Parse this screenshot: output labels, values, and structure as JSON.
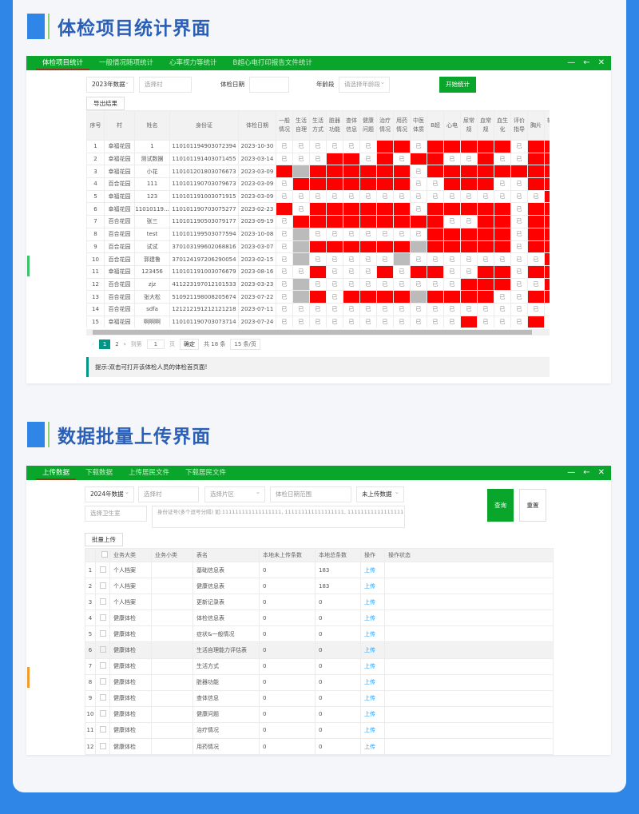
{
  "section1": {
    "title": "体检项目统计界面"
  },
  "section2": {
    "title": "数据批量上传界面"
  },
  "win1": {
    "tabs": [
      "体检项目统计",
      "一般情况随项统计",
      "心率视力等统计",
      "B超心电打印报告文件统计"
    ],
    "controls": {
      "year": "2023年数据",
      "village_placeholder": "选择村",
      "date_label": "体检日期",
      "age_label": "年龄段",
      "age_placeholder": "请选择年龄段",
      "start_button": "开始统计",
      "export_button": "导出结果"
    },
    "columns": [
      "序号",
      "村",
      "姓名",
      "身份证",
      "体检日期",
      "一般情况",
      "生活自理",
      "生活方式",
      "脏器功能",
      "查体信息",
      "健康问题",
      "治疗情况",
      "用药情况",
      "中医体质",
      "B超",
      "心电",
      "尿常规",
      "血常规",
      "血生化",
      "评价指导",
      "胸片",
      "辅检其"
    ],
    "done_text": "已",
    "status_colors": {
      "r": "#ff0000",
      "g": "#bbbbbb"
    },
    "rows": [
      [
        "1",
        "幸福花园",
        "1",
        "110101194903072394",
        "2023-10-30",
        "yyyyyyrryrrrrryrr"
      ],
      [
        "2",
        "幸福花园",
        "测试数据",
        "110101191403071455",
        "2023-03-14",
        "yyyrryryrryyryyrr"
      ],
      [
        "3",
        "幸福花园",
        "小花",
        "110101201803076673",
        "2023-03-09",
        "rgrrrrrryrrrrrrrr"
      ],
      [
        "4",
        "百合花园",
        "111",
        "110101190703079673",
        "2023-03-09",
        "yrrrrrrryyrrryyrr"
      ],
      [
        "5",
        "幸福花园",
        "123",
        "110101191003071915",
        "2023-03-09",
        "yyyyyyyyyyyyyyyyr"
      ],
      [
        "6",
        "幸福花园",
        "11010119...",
        "110101190703075277",
        "2023-02-23",
        "ryrrrrrryrrrrryrr"
      ],
      [
        "7",
        "百合花园",
        "张三",
        "110101190503079177",
        "2023-09-19",
        "yrrrrrrrrryyrryrr"
      ],
      [
        "8",
        "百合花园",
        "test",
        "110101199503077594",
        "2023-10-08",
        "ygyyyyyyyrrrrryrr"
      ],
      [
        "9",
        "百合花园",
        "试试",
        "370103199602068816",
        "2023-03-07",
        "ygrrrrrrgrrrrryrr"
      ],
      [
        "10",
        "百合花园",
        "郭建鲁",
        "370124197206290054",
        "2023-02-15",
        "ygyyyyygyyyyyyyyr"
      ],
      [
        "11",
        "幸福花园",
        "123456",
        "110101191003076679",
        "2023-08-16",
        "yyryyyryrryyrryrr"
      ],
      [
        "12",
        "百合花园",
        "zjz",
        "411223197012101533",
        "2023-03-23",
        "ygyyyyyyyyyrrryyr"
      ],
      [
        "13",
        "百合花园",
        "张大松",
        "510921198008205674",
        "2023-07-22",
        "ygryrrrrgrrrryyrr"
      ],
      [
        "14",
        "百合花园",
        "sdfa",
        "121212191212121218",
        "2023-07-11",
        "yyyyyyyyyyyyyyyyy"
      ],
      [
        "15",
        "幸福花园",
        "啊啊啊",
        "110101190703073714",
        "2023-07-24",
        "yyyyyyyyyyyryyyry"
      ]
    ],
    "pagination": {
      "pages": [
        "1",
        "2"
      ],
      "current": "1",
      "goto_label": "到第",
      "goto_value": "1",
      "page_unit": "页",
      "confirm": "确定",
      "total": "共 18 条",
      "page_size": "15 条/页"
    },
    "hint": "提示:双击可打开该体检人员的体检首页面!"
  },
  "win2": {
    "tabs": [
      "上传数据",
      "下载数据",
      "上传居民文件",
      "下载居民文件"
    ],
    "controls": {
      "year": "2024年数据",
      "village_placeholder": "选择村",
      "area_placeholder": "选择片区",
      "date_placeholder": "体检日期范围",
      "status": "未上传数据",
      "clinic_placeholder": "选择卫生室",
      "id_placeholder": "身份证号(多个逗号分隔) 如:111111111111111111, 111111111111111111, 111111111111111111",
      "query_button": "查询",
      "reset_button": "重置",
      "batch_button": "批量上传"
    },
    "columns": [
      "",
      "",
      "业务大类",
      "业务小类",
      "表名",
      "本地未上传条数",
      "本地总条数",
      "操作",
      "操作状态"
    ],
    "action_text": "上传",
    "rows": [
      [
        "1",
        "个人档案",
        "",
        "基础信息表",
        "0",
        "183"
      ],
      [
        "2",
        "个人档案",
        "",
        "健康信息表",
        "0",
        "183"
      ],
      [
        "3",
        "个人档案",
        "",
        "更新记录表",
        "0",
        "0"
      ],
      [
        "4",
        "健康体检",
        "",
        "体检信息表",
        "0",
        "0"
      ],
      [
        "5",
        "健康体检",
        "",
        "症状&一般情况",
        "0",
        "0"
      ],
      [
        "6",
        "健康体检",
        "",
        "生活自理能力评估表",
        "0",
        "0"
      ],
      [
        "7",
        "健康体检",
        "",
        "生活方式",
        "0",
        "0"
      ],
      [
        "8",
        "健康体检",
        "",
        "脏器功能",
        "0",
        "0"
      ],
      [
        "9",
        "健康体检",
        "",
        "查体信息",
        "0",
        "0"
      ],
      [
        "10",
        "健康体检",
        "",
        "健康问题",
        "0",
        "0"
      ],
      [
        "11",
        "健康体检",
        "",
        "治疗情况",
        "0",
        "0"
      ],
      [
        "12",
        "健康体检",
        "",
        "用药情况",
        "0",
        "0"
      ]
    ]
  }
}
